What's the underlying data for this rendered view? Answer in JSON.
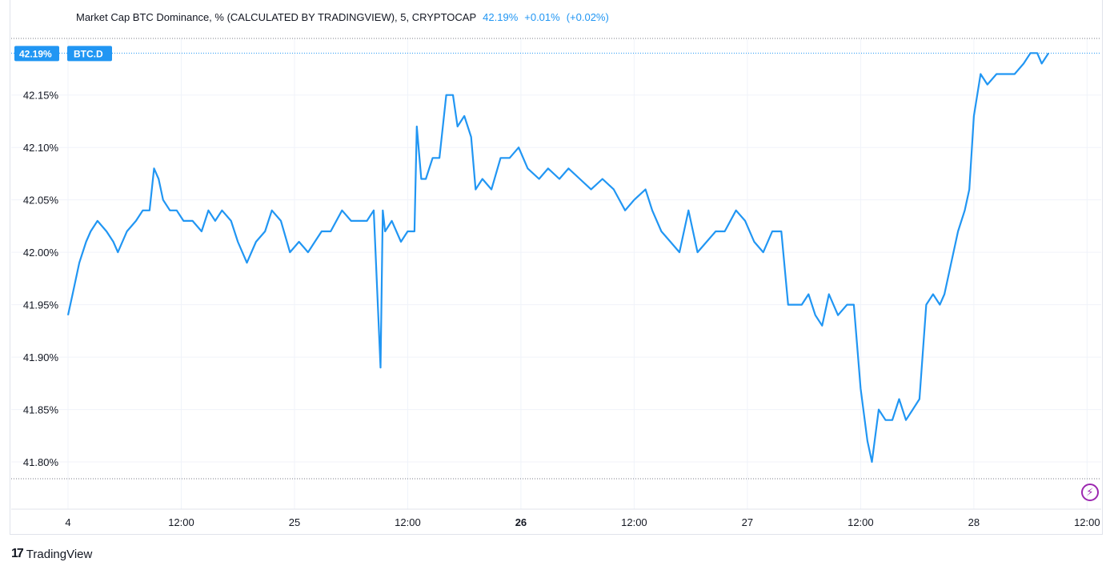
{
  "legend": {
    "title": "Market Cap BTC Dominance, % (CALCULATED BY TRADINGVIEW), 5, CRYPTOCAP",
    "last": "42.19%",
    "change": "+0.01%",
    "change_pct": "(+0.02%)"
  },
  "badge": {
    "price": "42.19%",
    "symbol": "BTC.D"
  },
  "brand": {
    "name": "TradingView"
  },
  "colors": {
    "line": "#2196f3",
    "grid": "#f0f3fa",
    "text": "#131722",
    "bolt": "#9c27b0"
  },
  "icons": {
    "bolt": "lightning-icon"
  },
  "chart_data": {
    "type": "line",
    "y_ticks": [
      "41.80%",
      "41.85%",
      "41.90%",
      "41.95%",
      "42.00%",
      "42.05%",
      "42.10%",
      "42.15%"
    ],
    "x_ticks": [
      "4",
      "12:00",
      "25",
      "12:00",
      "26",
      "12:00",
      "27",
      "12:00",
      "28",
      "12:00"
    ],
    "x_bold": [
      4
    ],
    "x_tick_t": [
      0,
      0.5,
      1,
      1.5,
      2,
      2.5,
      3,
      3.5,
      4,
      4.5
    ],
    "ylim": [
      41.784,
      42.204
    ],
    "xlim": [
      0,
      4.52
    ],
    "grid": true,
    "series": [
      {
        "values": [
          [
            0.0,
            41.94
          ],
          [
            0.02,
            41.96
          ],
          [
            0.05,
            41.99
          ],
          [
            0.08,
            42.01
          ],
          [
            0.1,
            42.02
          ],
          [
            0.13,
            42.03
          ],
          [
            0.17,
            42.02
          ],
          [
            0.2,
            42.01
          ],
          [
            0.22,
            42.0
          ],
          [
            0.26,
            42.02
          ],
          [
            0.3,
            42.03
          ],
          [
            0.33,
            42.04
          ],
          [
            0.36,
            42.04
          ],
          [
            0.38,
            42.08
          ],
          [
            0.4,
            42.07
          ],
          [
            0.42,
            42.05
          ],
          [
            0.45,
            42.04
          ],
          [
            0.48,
            42.04
          ],
          [
            0.51,
            42.03
          ],
          [
            0.55,
            42.03
          ],
          [
            0.59,
            42.02
          ],
          [
            0.62,
            42.04
          ],
          [
            0.65,
            42.03
          ],
          [
            0.68,
            42.04
          ],
          [
            0.72,
            42.03
          ],
          [
            0.75,
            42.01
          ],
          [
            0.79,
            41.99
          ],
          [
            0.83,
            42.01
          ],
          [
            0.87,
            42.02
          ],
          [
            0.9,
            42.04
          ],
          [
            0.94,
            42.03
          ],
          [
            0.98,
            42.0
          ],
          [
            1.02,
            42.01
          ],
          [
            1.06,
            42.0
          ],
          [
            1.09,
            42.01
          ],
          [
            1.12,
            42.02
          ],
          [
            1.16,
            42.02
          ],
          [
            1.21,
            42.04
          ],
          [
            1.25,
            42.03
          ],
          [
            1.29,
            42.03
          ],
          [
            1.32,
            42.03
          ],
          [
            1.35,
            42.04
          ],
          [
            1.38,
            41.89
          ],
          [
            1.39,
            42.04
          ],
          [
            1.4,
            42.02
          ],
          [
            1.43,
            42.03
          ],
          [
            1.47,
            42.01
          ],
          [
            1.5,
            42.02
          ],
          [
            1.53,
            42.02
          ],
          [
            1.54,
            42.12
          ],
          [
            1.56,
            42.07
          ],
          [
            1.58,
            42.07
          ],
          [
            1.61,
            42.09
          ],
          [
            1.64,
            42.09
          ],
          [
            1.67,
            42.15
          ],
          [
            1.7,
            42.15
          ],
          [
            1.72,
            42.12
          ],
          [
            1.75,
            42.13
          ],
          [
            1.78,
            42.11
          ],
          [
            1.8,
            42.06
          ],
          [
            1.83,
            42.07
          ],
          [
            1.87,
            42.06
          ],
          [
            1.91,
            42.09
          ],
          [
            1.95,
            42.09
          ],
          [
            1.99,
            42.1
          ],
          [
            2.03,
            42.08
          ],
          [
            2.08,
            42.07
          ],
          [
            2.12,
            42.08
          ],
          [
            2.17,
            42.07
          ],
          [
            2.21,
            42.08
          ],
          [
            2.26,
            42.07
          ],
          [
            2.31,
            42.06
          ],
          [
            2.36,
            42.07
          ],
          [
            2.41,
            42.06
          ],
          [
            2.46,
            42.04
          ],
          [
            2.5,
            42.05
          ],
          [
            2.55,
            42.06
          ],
          [
            2.58,
            42.04
          ],
          [
            2.62,
            42.02
          ],
          [
            2.66,
            42.01
          ],
          [
            2.7,
            42.0
          ],
          [
            2.74,
            42.04
          ],
          [
            2.78,
            42.0
          ],
          [
            2.82,
            42.01
          ],
          [
            2.86,
            42.02
          ],
          [
            2.9,
            42.02
          ],
          [
            2.95,
            42.04
          ],
          [
            2.99,
            42.03
          ],
          [
            3.03,
            42.01
          ],
          [
            3.07,
            42.0
          ],
          [
            3.11,
            42.02
          ],
          [
            3.15,
            42.02
          ],
          [
            3.18,
            41.95
          ],
          [
            3.21,
            41.95
          ],
          [
            3.24,
            41.95
          ],
          [
            3.27,
            41.96
          ],
          [
            3.3,
            41.94
          ],
          [
            3.33,
            41.93
          ],
          [
            3.36,
            41.96
          ],
          [
            3.4,
            41.94
          ],
          [
            3.44,
            41.95
          ],
          [
            3.47,
            41.95
          ],
          [
            3.5,
            41.87
          ],
          [
            3.53,
            41.82
          ],
          [
            3.55,
            41.8
          ],
          [
            3.58,
            41.85
          ],
          [
            3.61,
            41.84
          ],
          [
            3.64,
            41.84
          ],
          [
            3.67,
            41.86
          ],
          [
            3.7,
            41.84
          ],
          [
            3.73,
            41.85
          ],
          [
            3.76,
            41.86
          ],
          [
            3.79,
            41.95
          ],
          [
            3.82,
            41.96
          ],
          [
            3.85,
            41.95
          ],
          [
            3.87,
            41.96
          ],
          [
            3.9,
            41.99
          ],
          [
            3.93,
            42.02
          ],
          [
            3.96,
            42.04
          ],
          [
            3.98,
            42.06
          ],
          [
            4.0,
            42.13
          ],
          [
            4.03,
            42.17
          ],
          [
            4.06,
            42.16
          ],
          [
            4.1,
            42.17
          ],
          [
            4.14,
            42.17
          ],
          [
            4.18,
            42.17
          ],
          [
            4.22,
            42.18
          ],
          [
            4.25,
            42.19
          ],
          [
            4.28,
            42.19
          ],
          [
            4.3,
            42.18
          ],
          [
            4.33,
            42.19
          ]
        ]
      }
    ]
  }
}
